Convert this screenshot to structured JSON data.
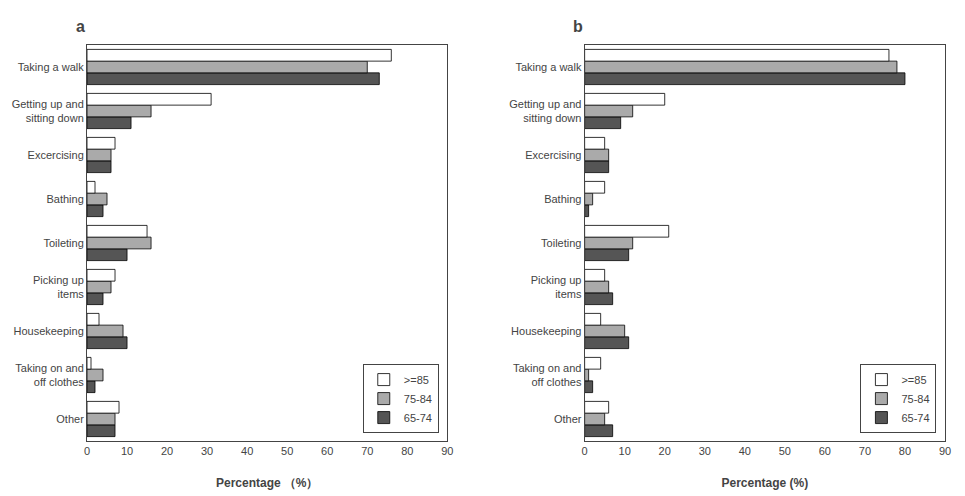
{
  "chart_data": [
    {
      "type": "bar",
      "orientation": "horizontal",
      "title": "a",
      "xlabel": "Percentage （%）",
      "categories": [
        "Other",
        "Taking on and\noff clothes",
        "Housekeeping",
        "Picking up\nitems",
        "Toileting",
        "Bathing",
        "Excercising",
        "Getting up and\nsitting down",
        "Taking a walk"
      ],
      "series": [
        {
          "name": ">=85",
          "color": "#ffffff",
          "values": [
            8,
            1,
            3,
            7,
            15,
            2,
            7,
            31,
            76
          ]
        },
        {
          "name": "75-84",
          "color": "#aaaaaa",
          "values": [
            7,
            4,
            9,
            6,
            16,
            5,
            6,
            16,
            70
          ]
        },
        {
          "name": "65-74",
          "color": "#555555",
          "values": [
            7,
            2,
            10,
            4,
            10,
            4,
            6,
            11,
            73
          ]
        }
      ],
      "xlim": [
        0,
        90
      ],
      "xticks": [
        0,
        10,
        20,
        30,
        40,
        50,
        60,
        70,
        80,
        90
      ],
      "grid": false,
      "legend": "lower right"
    },
    {
      "type": "bar",
      "orientation": "horizontal",
      "title": "b",
      "xlabel": "Percentage (%)",
      "categories": [
        "Other",
        "Taking on and\noff clothes",
        "Housekeeping",
        "Picking up\nitems",
        "Toileting",
        "Bathing",
        "Excercising",
        "Getting up and\nsitting down",
        "Taking a walk"
      ],
      "series": [
        {
          "name": ">=85",
          "color": "#ffffff",
          "values": [
            6,
            4,
            4,
            5,
            21,
            5,
            5,
            20,
            76
          ]
        },
        {
          "name": "75-84",
          "color": "#aaaaaa",
          "values": [
            5,
            1,
            10,
            6,
            12,
            2,
            6,
            12,
            78
          ]
        },
        {
          "name": "65-74",
          "color": "#555555",
          "values": [
            7,
            2,
            11,
            7,
            11,
            1,
            6,
            9,
            80
          ]
        }
      ],
      "xlim": [
        0,
        90
      ],
      "xticks": [
        0,
        10,
        20,
        30,
        40,
        50,
        60,
        70,
        80,
        90
      ],
      "grid": false,
      "legend": "lower right"
    }
  ]
}
